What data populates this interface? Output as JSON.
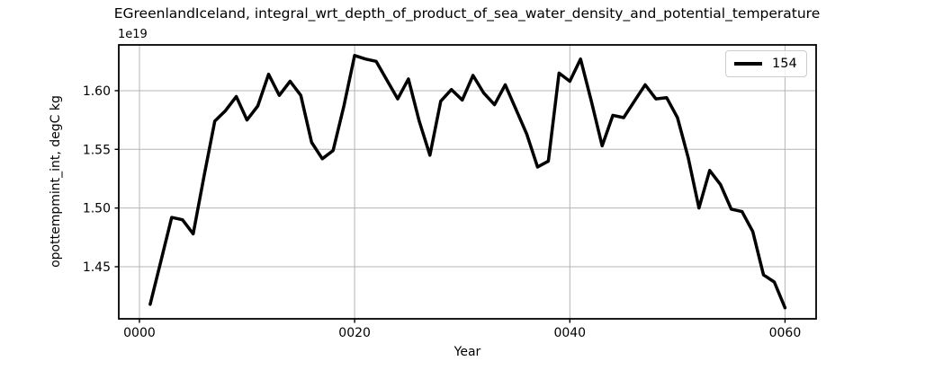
{
  "title": "EGreenlandIceland, integral_wrt_depth_of_product_of_sea_water_density_and_potential_temperature",
  "legend": {
    "entries": [
      {
        "label": "154",
        "color": "#000000"
      }
    ]
  },
  "chart_data": {
    "type": "line",
    "title": "EGreenlandIceland, integral_wrt_depth_of_product_of_sea_water_density_and_potential_temperature",
    "xlabel": "Year",
    "ylabel": "opottempmint_int, degC kg",
    "y_offset_text": "1e19",
    "y_unit_scale": "1e19",
    "grid": true,
    "legend_position": "upper right",
    "xlim": [
      -1.92,
      62.89
    ],
    "ylim": [
      1.4056,
      1.639
    ],
    "xticks": {
      "values": [
        0,
        20,
        40,
        60
      ],
      "labels": [
        "0000",
        "0020",
        "0040",
        "0060"
      ]
    },
    "yticks": {
      "values": [
        1.45,
        1.5,
        1.55,
        1.6
      ],
      "labels": [
        "1.45",
        "1.50",
        "1.55",
        "1.60"
      ]
    },
    "series": [
      {
        "name": "154",
        "color": "#000000",
        "linewidth": 3.5,
        "x": [
          1,
          2,
          3,
          4,
          5,
          6,
          7,
          8,
          9,
          10,
          11,
          12,
          13,
          14,
          15,
          16,
          17,
          18,
          19,
          20,
          21,
          22,
          23,
          24,
          25,
          26,
          27,
          28,
          29,
          30,
          31,
          32,
          33,
          34,
          35,
          36,
          37,
          38,
          39,
          40,
          41,
          42,
          43,
          44,
          45,
          46,
          47,
          48,
          49,
          50,
          51,
          52,
          53,
          54,
          55,
          56,
          57,
          58,
          59,
          60
        ],
        "y": [
          1.418,
          1.455,
          1.492,
          1.49,
          1.478,
          1.527,
          1.574,
          1.583,
          1.595,
          1.575,
          1.587,
          1.614,
          1.596,
          1.608,
          1.596,
          1.556,
          1.542,
          1.549,
          1.587,
          1.63,
          1.627,
          1.625,
          1.609,
          1.593,
          1.61,
          1.574,
          1.545,
          1.591,
          1.601,
          1.592,
          1.613,
          1.598,
          1.588,
          1.605,
          1.584,
          1.563,
          1.535,
          1.54,
          1.615,
          1.608,
          1.627,
          1.591,
          1.553,
          1.579,
          1.577,
          1.591,
          1.605,
          1.593,
          1.594,
          1.577,
          1.543,
          1.5,
          1.532,
          1.52,
          1.499,
          1.497,
          1.48,
          1.443,
          1.437,
          1.415
        ]
      }
    ]
  }
}
